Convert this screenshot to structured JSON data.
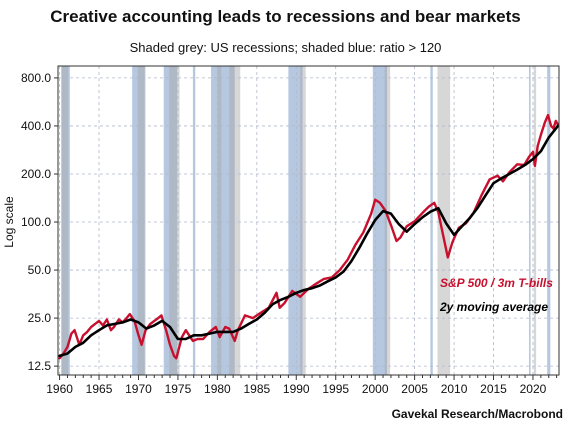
{
  "chart_data": {
    "type": "line",
    "title": "Creative accounting leads to recessions and bear markets",
    "subtitle": "Shaded grey: US recessions; shaded blue: ratio > 120",
    "source": "Gavekal Research/Macrobond",
    "ylabel": "Log scale",
    "y_scale": "log",
    "ylim": [
      11,
      950
    ],
    "xlim": [
      1959.8,
      2023.3
    ],
    "y_ticks": [
      12.5,
      25.0,
      50.0,
      100.0,
      200.0,
      400.0,
      800.0
    ],
    "y_tick_labels": [
      "12.5",
      "25.0",
      "50.0",
      "100.0",
      "200.0",
      "400.0",
      "800.0"
    ],
    "x_ticks": [
      1960,
      1965,
      1970,
      1975,
      1980,
      1985,
      1990,
      1995,
      2000,
      2005,
      2010,
      2015,
      2020
    ],
    "x_tick_labels": [
      "1960",
      "1965",
      "1970",
      "1975",
      "1980",
      "1985",
      "1990",
      "1995",
      "2000",
      "2005",
      "2010",
      "2015",
      "2020"
    ],
    "grid": true,
    "legend_position": "right, inside plot",
    "recession_bands": [
      [
        1960.3,
        1961.1
      ],
      [
        1969.9,
        1970.9
      ],
      [
        1973.9,
        1975.2
      ],
      [
        1980.0,
        1980.5
      ],
      [
        1981.5,
        1982.9
      ],
      [
        1990.5,
        1991.2
      ],
      [
        2001.2,
        2001.9
      ],
      [
        2007.9,
        2009.5
      ],
      [
        2020.1,
        2020.4
      ]
    ],
    "ratio_bands": [
      [
        1960.2,
        1961.3
      ],
      [
        1969.2,
        1970.8
      ],
      [
        1973.2,
        1974.9
      ],
      [
        1976.9,
        1977.2
      ],
      [
        1979.2,
        1982.2
      ],
      [
        1989.0,
        1990.8
      ],
      [
        1999.7,
        2001.5
      ],
      [
        2007.0,
        2007.3
      ],
      [
        2019.5,
        2019.7
      ],
      [
        2021.8,
        2022.2
      ]
    ],
    "series": [
      {
        "name": "S&P 500 / 3m T-bills",
        "color": "#c8102e",
        "x": [
          1960.0,
          1960.5,
          1961.0,
          1961.5,
          1961.9,
          1962.5,
          1963.0,
          1963.5,
          1964.0,
          1964.5,
          1965.0,
          1965.5,
          1966.0,
          1966.5,
          1966.9,
          1967.5,
          1968.0,
          1968.5,
          1968.9,
          1969.5,
          1970.0,
          1970.4,
          1970.9,
          1971.5,
          1972.0,
          1972.5,
          1972.9,
          1973.5,
          1974.0,
          1974.5,
          1974.8,
          1975.5,
          1976.0,
          1976.9,
          1977.5,
          1978.2,
          1979.0,
          1979.8,
          1980.3,
          1981.0,
          1981.5,
          1982.2,
          1982.6,
          1983.5,
          1984.5,
          1985.5,
          1986.5,
          1987.5,
          1987.9,
          1988.5,
          1989.5,
          1990.5,
          1991.5,
          1992.5,
          1993.5,
          1994.5,
          1995.5,
          1996.5,
          1997.5,
          1998.5,
          1999.5,
          2000.0,
          2000.6,
          2001.3,
          2002.0,
          2002.7,
          2003.2,
          2004.0,
          2005.0,
          2006.0,
          2006.8,
          2007.5,
          2008.0,
          2008.5,
          2009.2,
          2009.8,
          2010.6,
          2011.5,
          2012.5,
          2013.5,
          2014.5,
          2015.5,
          2016.2,
          2017.0,
          2018.0,
          2018.9,
          2019.5,
          2020.0,
          2020.25,
          2020.6,
          2021.0,
          2021.5,
          2021.9,
          2022.3,
          2022.6,
          2022.9,
          2023.2
        ],
        "values": [
          14,
          15,
          16.5,
          20,
          21,
          17,
          19.5,
          20.5,
          22,
          23,
          24,
          22.5,
          24.5,
          21,
          22,
          24.5,
          23.5,
          25,
          26.5,
          24,
          19.5,
          17,
          21,
          23,
          24,
          25,
          26,
          21,
          17,
          14.5,
          14,
          19,
          21,
          18,
          18.5,
          18.5,
          20.5,
          22,
          19,
          22,
          21.5,
          18,
          21,
          26,
          25,
          27,
          29,
          36,
          29,
          31,
          37,
          34,
          38,
          41,
          44,
          45,
          50,
          58,
          72,
          86,
          113,
          138,
          132,
          118,
          96,
          76,
          80,
          94,
          101,
          114,
          125,
          132,
          115,
          88,
          60,
          75,
          92,
          98,
          115,
          148,
          185,
          195,
          180,
          205,
          230,
          228,
          256,
          275,
          225,
          300,
          352,
          420,
          468,
          400,
          385,
          430,
          405
        ]
      },
      {
        "name": "2y moving average",
        "color": "#000000",
        "x": [
          1960.0,
          1961.0,
          1962.0,
          1963.0,
          1964.0,
          1965.0,
          1966.0,
          1967.0,
          1968.0,
          1969.0,
          1970.0,
          1971.0,
          1972.0,
          1973.0,
          1974.0,
          1975.0,
          1976.0,
          1977.0,
          1978.0,
          1979.0,
          1980.0,
          1981.0,
          1982.0,
          1983.0,
          1984.0,
          1985.0,
          1986.0,
          1987.0,
          1988.0,
          1989.0,
          1990.0,
          1991.0,
          1992.0,
          1993.0,
          1994.0,
          1995.0,
          1996.0,
          1997.0,
          1998.0,
          1999.0,
          2000.0,
          2001.0,
          2002.0,
          2003.0,
          2004.0,
          2005.0,
          2006.0,
          2007.0,
          2008.0,
          2009.0,
          2010.0,
          2011.0,
          2012.0,
          2013.0,
          2014.0,
          2015.0,
          2016.0,
          2017.0,
          2018.0,
          2019.0,
          2020.0,
          2021.0,
          2022.0,
          2023.2
        ],
        "values": [
          14.5,
          15,
          16.5,
          17.5,
          19.5,
          21,
          22.5,
          23,
          23.5,
          24.5,
          23.5,
          21.5,
          22.5,
          24,
          22,
          18.5,
          18.5,
          19.5,
          19.5,
          20,
          20.5,
          20.5,
          20.5,
          21.5,
          23,
          24.5,
          27,
          30.5,
          32.5,
          34,
          36,
          37.5,
          38.5,
          40,
          42.5,
          45,
          49,
          57,
          69,
          85,
          103,
          117,
          113,
          97,
          87,
          97,
          107,
          116,
          122,
          98,
          83,
          94,
          106,
          123,
          147,
          175,
          188,
          200,
          213,
          228,
          248,
          278,
          338,
          402
        ]
      }
    ]
  }
}
